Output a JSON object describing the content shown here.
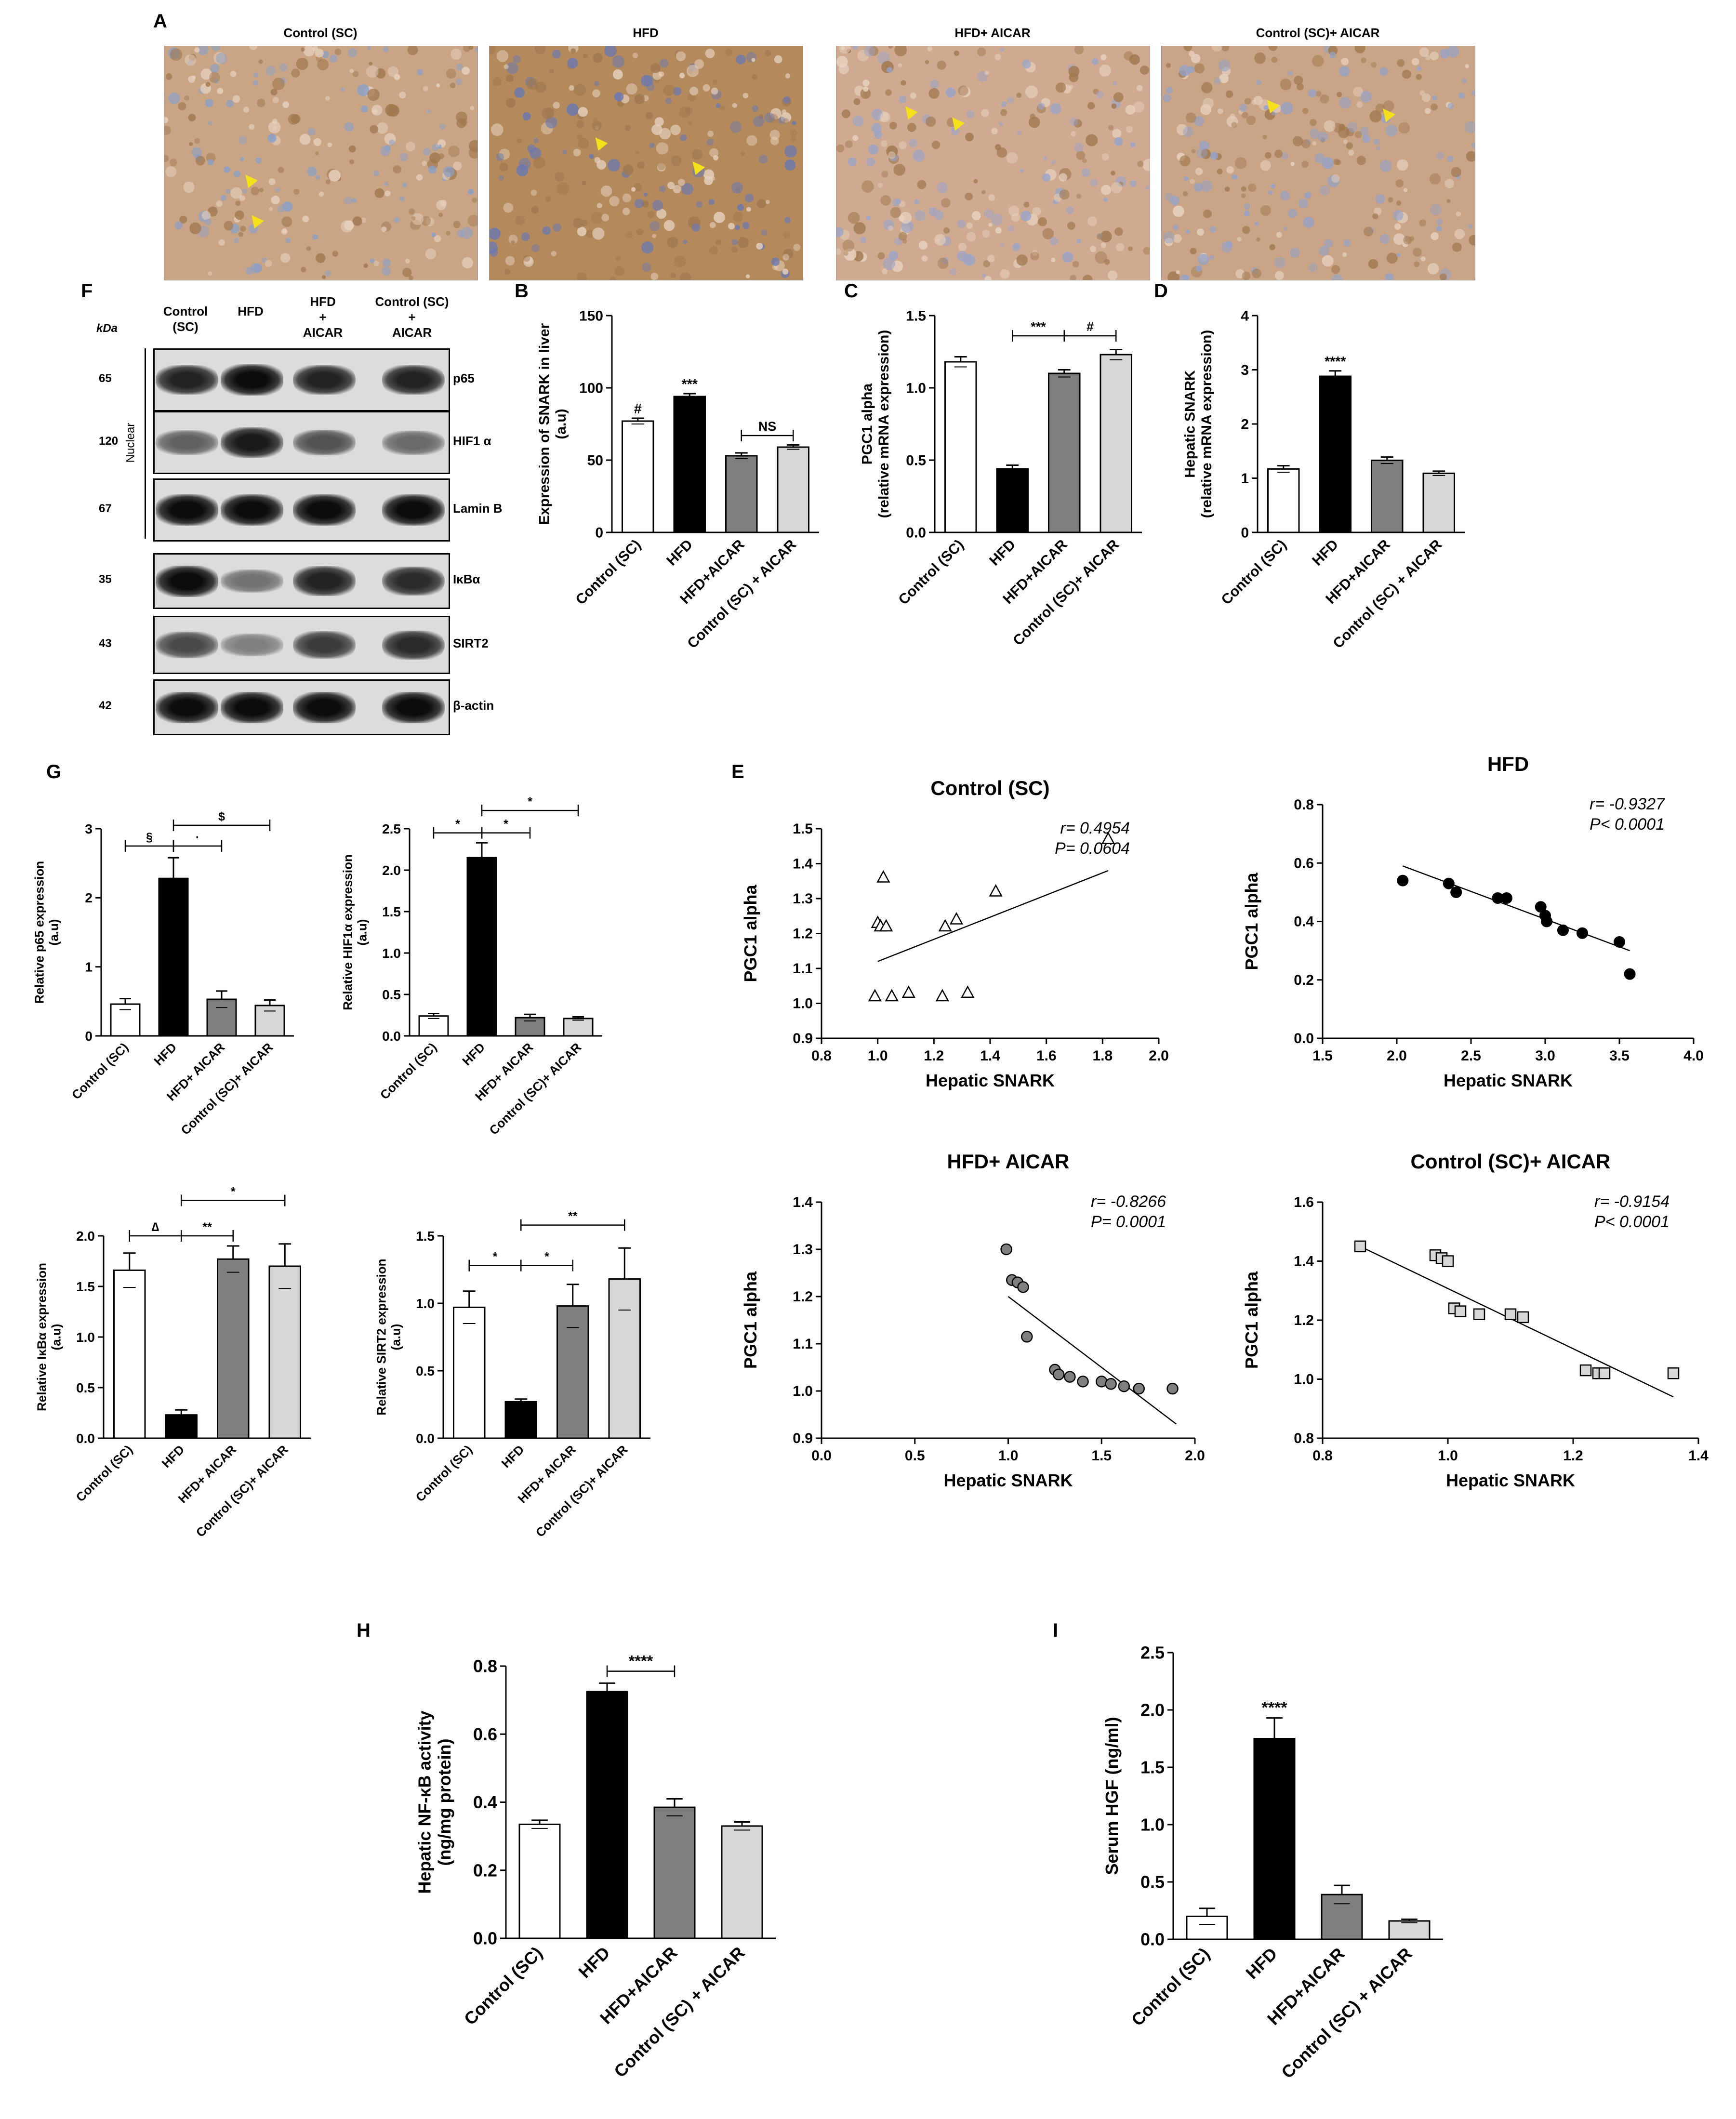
{
  "panel_letters": {
    "A": "A",
    "B": "B",
    "C": "C",
    "D": "D",
    "E": "E",
    "F": "F",
    "G": "G",
    "H": "H",
    "I": "I"
  },
  "micrographs": [
    {
      "label": "Control (SC)",
      "tone": "#c9a585",
      "accent": "#8aa0c8"
    },
    {
      "label": "HFD",
      "tone": "#b48a5c",
      "accent": "#6a78b0"
    },
    {
      "label": "HFD+ AICAR",
      "tone": "#d0aa90",
      "accent": "#9aa4c8"
    },
    {
      "label": "Control (SC)+ AICAR",
      "tone": "#c9a486",
      "accent": "#94a2c8"
    }
  ],
  "blot": {
    "kda_header": "kDa",
    "nuclear_label": "Nuclear",
    "lanes": [
      "Control\n(SC)",
      "HFD",
      "HFD\n+\nAICAR",
      "Control (SC)\n+\nAICAR"
    ],
    "rows": [
      {
        "name": "p65",
        "kda": "65",
        "intensity": [
          0.85,
          1.0,
          0.85,
          0.85
        ]
      },
      {
        "name": "HIF1 α",
        "kda": "120",
        "intensity": [
          0.45,
          0.9,
          0.55,
          0.4
        ]
      },
      {
        "name": "Lamin B",
        "kda": "67",
        "intensity": [
          1.0,
          1.0,
          1.0,
          1.0
        ]
      },
      {
        "name": "IκBα",
        "kda": "35",
        "intensity": [
          1.0,
          0.35,
          0.85,
          0.8
        ]
      },
      {
        "name": "SIRT2",
        "kda": "43",
        "intensity": [
          0.6,
          0.25,
          0.7,
          0.8
        ]
      },
      {
        "name": "β-actin",
        "kda": "42",
        "intensity": [
          1.0,
          1.0,
          1.0,
          1.0
        ]
      }
    ]
  },
  "colors": {
    "white": "#ffffff",
    "black": "#000000",
    "dark": "#7f7f7f",
    "light": "#d7d7d7",
    "arrow": "#f5e11a"
  },
  "chart_data": [
    {
      "id": "B",
      "type": "bar",
      "ylabel": "Expression of SNARK in liver\n(a.u)",
      "categories": [
        "Control (SC)",
        "HFD",
        "HFD+AICAR",
        "Control (SC) + AICAR"
      ],
      "values": [
        77,
        94,
        53,
        59
      ],
      "errors": [
        2,
        2,
        2,
        1.5
      ],
      "ylim": [
        0,
        150
      ],
      "yticks": [
        0,
        50,
        100,
        150
      ],
      "labels": [
        "#",
        "***",
        "",
        ""
      ],
      "brackets": [
        {
          "from": 2,
          "to": 3,
          "text": "NS",
          "y": 67
        }
      ]
    },
    {
      "id": "C",
      "type": "bar",
      "ylabel": "PGC1 alpha\n(relative mRNA expression)",
      "categories": [
        "Control (SC)",
        "HFD",
        "HFD+AICAR",
        "Control (SC)+ AICAR"
      ],
      "values": [
        1.18,
        0.44,
        1.1,
        1.23
      ],
      "errors": [
        0.035,
        0.025,
        0.025,
        0.035
      ],
      "ylim": [
        0,
        1.5
      ],
      "yticks": [
        0.0,
        0.5,
        1.0,
        1.5
      ],
      "labels": [
        "",
        "",
        "",
        ""
      ],
      "brackets": [
        {
          "from": 1,
          "to": 2,
          "text": "***",
          "y": 1.36
        },
        {
          "from": 2,
          "to": 3,
          "text": "#",
          "y": 1.36
        }
      ]
    },
    {
      "id": "D",
      "type": "bar",
      "ylabel": "Hepatic SNARK\n(relative mRNA expression)",
      "categories": [
        "Control (SC)",
        "HFD",
        "HFD+AICAR",
        "Control (SC) + AICAR"
      ],
      "values": [
        1.17,
        2.88,
        1.33,
        1.09
      ],
      "errors": [
        0.06,
        0.1,
        0.06,
        0.04
      ],
      "ylim": [
        0,
        4
      ],
      "yticks": [
        0,
        1,
        2,
        3,
        4
      ],
      "labels": [
        "",
        "****",
        "",
        ""
      ],
      "brackets": []
    },
    {
      "id": "G1",
      "type": "bar",
      "ylabel": "Relative p65 expression\n(a.u)",
      "categories": [
        "Control (SC)",
        "HFD",
        "HFD+ AICAR",
        "Control (SC)+ AICAR"
      ],
      "values": [
        0.46,
        2.28,
        0.53,
        0.44
      ],
      "errors": [
        0.08,
        0.3,
        0.12,
        0.08
      ],
      "ylim": [
        0,
        3
      ],
      "yticks": [
        0,
        1,
        2,
        3
      ],
      "labels": [
        "",
        "",
        "",
        ""
      ],
      "brackets": [
        {
          "from": 0,
          "to": 1,
          "text": "§",
          "y": 2.75
        },
        {
          "from": 1,
          "to": 2,
          "text": "·",
          "y": 2.75
        },
        {
          "from": 1,
          "to": 3,
          "text": "$",
          "y": 3.05
        }
      ]
    },
    {
      "id": "G2",
      "type": "bar",
      "ylabel": "Relative HIF1α expression\n(a.u)",
      "categories": [
        "Control (SC)",
        "HFD",
        "HFD+ AICAR",
        "Control (SC)+ AICAR"
      ],
      "values": [
        0.24,
        2.15,
        0.22,
        0.21
      ],
      "errors": [
        0.03,
        0.18,
        0.04,
        0.02
      ],
      "ylim": [
        0,
        2.5
      ],
      "yticks": [
        0.0,
        0.5,
        1.0,
        1.5,
        2.0,
        2.5
      ],
      "labels": [
        "",
        "",
        "",
        ""
      ],
      "brackets": [
        {
          "from": 0,
          "to": 1,
          "text": "*",
          "y": 2.45
        },
        {
          "from": 1,
          "to": 2,
          "text": "*",
          "y": 2.45
        },
        {
          "from": 1,
          "to": 3,
          "text": "*",
          "y": 2.72
        }
      ]
    },
    {
      "id": "G3",
      "type": "bar",
      "ylabel": "Relative IκBα expression\n(a.u)",
      "categories": [
        "Control (SC)",
        "HFD",
        "HFD+ AICAR",
        "Control (SC)+ AICAR"
      ],
      "values": [
        1.66,
        0.23,
        1.77,
        1.7
      ],
      "errors": [
        0.17,
        0.05,
        0.13,
        0.22
      ],
      "ylim": [
        0,
        2.0
      ],
      "yticks": [
        0.0,
        0.5,
        1.0,
        1.5,
        2.0
      ],
      "labels": [
        "",
        "",
        "",
        ""
      ],
      "brackets": [
        {
          "from": 0,
          "to": 1,
          "text": "∆",
          "y": 2.0
        },
        {
          "from": 1,
          "to": 2,
          "text": "**",
          "y": 2.0
        },
        {
          "from": 1,
          "to": 3,
          "text": "*",
          "y": 2.35
        }
      ]
    },
    {
      "id": "G4",
      "type": "bar",
      "ylabel": "Relative SIRT2 expression\n(a.u)",
      "categories": [
        "Control (SC)",
        "HFD",
        "HFD+ AICAR",
        "Control (SC)+ AICAR"
      ],
      "values": [
        0.97,
        0.27,
        0.98,
        1.18
      ],
      "errors": [
        0.12,
        0.02,
        0.16,
        0.23
      ],
      "ylim": [
        0,
        1.5
      ],
      "yticks": [
        0.0,
        0.5,
        1.0,
        1.5
      ],
      "labels": [
        "",
        "",
        "",
        ""
      ],
      "brackets": [
        {
          "from": 0,
          "to": 1,
          "text": "*",
          "y": 1.28
        },
        {
          "from": 1,
          "to": 2,
          "text": "*",
          "y": 1.28
        },
        {
          "from": 1,
          "to": 3,
          "text": "**",
          "y": 1.58
        }
      ]
    },
    {
      "id": "H",
      "type": "bar",
      "ylabel": "Hepatic NF-κB activity\n(ng/mg protein)",
      "categories": [
        "Control (SC)",
        "HFD",
        "HFD+AICAR",
        "Control (SC) + AICAR"
      ],
      "values": [
        0.335,
        0.725,
        0.385,
        0.33
      ],
      "errors": [
        0.012,
        0.025,
        0.025,
        0.012
      ],
      "ylim": [
        0,
        0.8
      ],
      "yticks": [
        0.0,
        0.2,
        0.4,
        0.6,
        0.8
      ],
      "labels": [
        "",
        "",
        "",
        ""
      ],
      "brackets": [
        {
          "from": 1,
          "to": 2,
          "text": "****",
          "y": 0.785
        }
      ]
    },
    {
      "id": "I",
      "type": "bar",
      "ylabel": "Serum HGF (ng/ml)",
      "categories": [
        "Control (SC)",
        "HFD",
        "HFD+AICAR",
        "Control (SC) + AICAR"
      ],
      "values": [
        0.2,
        1.75,
        0.39,
        0.16
      ],
      "errors": [
        0.07,
        0.18,
        0.08,
        0.015
      ],
      "ylim": [
        0,
        2.5
      ],
      "yticks": [
        0.0,
        0.5,
        1.0,
        1.5,
        2.0,
        2.5
      ],
      "labels": [
        "",
        "****",
        "",
        ""
      ],
      "brackets": []
    },
    {
      "id": "E1",
      "type": "scatter",
      "title": "Control (SC)",
      "xlabel": "Hepatic SNARK",
      "ylabel": "PGC1 alpha",
      "stat1": "r= 0.4954",
      "stat2": "P= 0.0604",
      "marker": "triangle",
      "xlim": [
        0.8,
        2.0
      ],
      "xticks": [
        0.8,
        1.0,
        1.2,
        1.4,
        1.6,
        1.8,
        2.0
      ],
      "ylim": [
        0.9,
        1.5
      ],
      "yticks": [
        0.9,
        1.0,
        1.1,
        1.2,
        1.3,
        1.4,
        1.5
      ],
      "x": [
        0.99,
        1.0,
        1.01,
        1.02,
        1.03,
        1.05,
        1.11,
        1.23,
        1.24,
        1.28,
        1.32,
        1.42,
        1.82
      ],
      "y": [
        1.02,
        1.23,
        1.22,
        1.36,
        1.22,
        1.02,
        1.03,
        1.02,
        1.22,
        1.24,
        1.03,
        1.32,
        1.47
      ],
      "fit": [
        [
          1.0,
          1.12
        ],
        [
          1.82,
          1.38
        ]
      ]
    },
    {
      "id": "E2",
      "type": "scatter",
      "title": "HFD",
      "xlabel": "Hepatic SNARK",
      "ylabel": "PGC1 alpha",
      "stat1": "r=  -0.9327",
      "stat2": "P< 0.0001",
      "marker": "dot",
      "xlim": [
        1.5,
        4.0
      ],
      "xticks": [
        1.5,
        2.0,
        2.5,
        3.0,
        3.5,
        4.0
      ],
      "ylim": [
        0.0,
        0.8
      ],
      "yticks": [
        0.0,
        0.2,
        0.4,
        0.6,
        0.8
      ],
      "x": [
        2.04,
        2.35,
        2.4,
        2.68,
        2.74,
        2.97,
        3.0,
        3.01,
        3.12,
        3.25,
        3.5,
        3.57
      ],
      "y": [
        0.54,
        0.53,
        0.5,
        0.48,
        0.48,
        0.45,
        0.42,
        0.4,
        0.37,
        0.36,
        0.33,
        0.22
      ],
      "fit": [
        [
          2.04,
          0.59
        ],
        [
          3.57,
          0.3
        ]
      ]
    },
    {
      "id": "E3",
      "type": "scatter",
      "title": "HFD+ AICAR",
      "xlabel": "Hepatic SNARK",
      "ylabel": "PGC1 alpha",
      "stat1": "r=  -0.8266",
      "stat2": "P= 0.0001",
      "marker": "grey",
      "xlim": [
        0.0,
        2.0
      ],
      "xticks": [
        0.0,
        0.5,
        1.0,
        1.5,
        2.0
      ],
      "ylim": [
        0.9,
        1.4
      ],
      "yticks": [
        0.9,
        1.0,
        1.1,
        1.2,
        1.3,
        1.4
      ],
      "x": [
        0.99,
        1.02,
        1.05,
        1.08,
        1.1,
        1.25,
        1.27,
        1.33,
        1.4,
        1.5,
        1.55,
        1.62,
        1.7,
        1.88
      ],
      "y": [
        1.3,
        1.235,
        1.23,
        1.22,
        1.115,
        1.045,
        1.035,
        1.03,
        1.02,
        1.02,
        1.015,
        1.01,
        1.005,
        1.005
      ],
      "fit": [
        [
          1.0,
          1.2
        ],
        [
          1.9,
          0.93
        ]
      ]
    },
    {
      "id": "E4",
      "type": "scatter",
      "title": "Control (SC)+  AICAR",
      "xlabel": "Hepatic SNARK",
      "ylabel": "PGC1 alpha",
      "stat1": "r= -0.9154",
      "stat2": "P< 0.0001",
      "marker": "square",
      "xlim": [
        0.8,
        1.4
      ],
      "xticks": [
        0.8,
        1.0,
        1.2,
        1.4
      ],
      "ylim": [
        0.8,
        1.6
      ],
      "yticks": [
        0.8,
        1.0,
        1.2,
        1.4,
        1.6
      ],
      "x": [
        0.86,
        0.98,
        0.99,
        1.0,
        1.01,
        1.02,
        1.05,
        1.1,
        1.12,
        1.22,
        1.24,
        1.25,
        1.36
      ],
      "y": [
        1.45,
        1.42,
        1.41,
        1.4,
        1.24,
        1.23,
        1.22,
        1.22,
        1.21,
        1.03,
        1.02,
        1.02,
        1.02
      ],
      "fit": [
        [
          0.86,
          1.45
        ],
        [
          1.36,
          0.94
        ]
      ]
    }
  ]
}
